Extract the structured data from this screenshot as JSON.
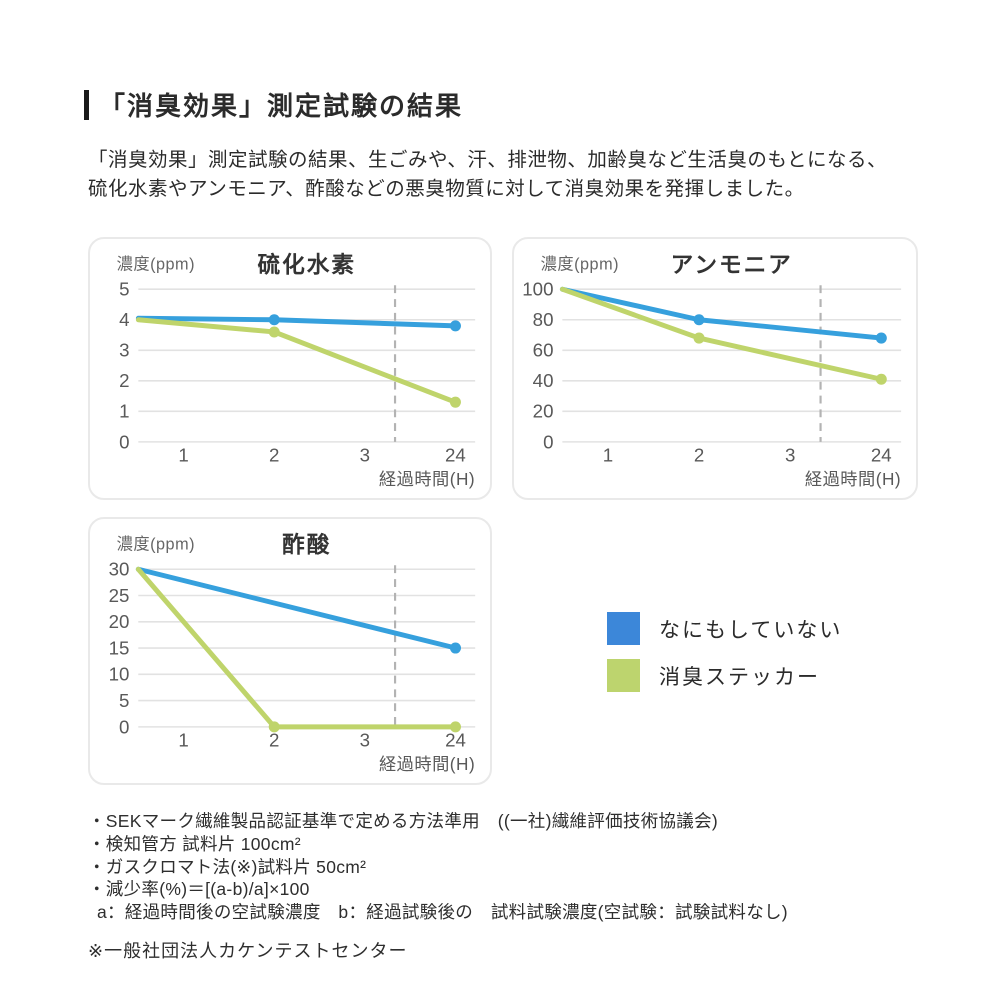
{
  "page": {
    "title": "「消臭効果」測定試験の結果",
    "description_lines": [
      "「消臭効果」測定試験の結果、生ごみや、汗、排泄物、加齢臭など生活臭のもとになる、",
      "硫化水素やアンモニア、酢酸などの悪臭物質に対して消臭効果を発揮しました。"
    ]
  },
  "colors": {
    "accent_bar": "#1a1a1a",
    "blue_line": "#36a0dd",
    "green_line": "#bfd46b",
    "grid": "#e2e2e2",
    "dashed_break": "#b3b3b3",
    "axis_text": "#595959",
    "chart_title_text": "#333333",
    "unit_label_text": "#666666"
  },
  "legend": {
    "items": [
      {
        "label": "なにもしていない",
        "color": "#3c87d9"
      },
      {
        "label": "消臭ステッカー",
        "color": "#bdd46e"
      }
    ]
  },
  "chart_data": [
    {
      "type": "line",
      "title": "硫化水素",
      "ylabel": "濃度(ppm)",
      "xlabel": "経過時間(H)",
      "x_ticks": [
        "1",
        "2",
        "3",
        "24"
      ],
      "y_ticks": [
        5,
        4,
        3,
        2,
        1,
        0
      ],
      "ylim": [
        0,
        5
      ],
      "grid": true,
      "axis_break_dashed_after": "3",
      "series": [
        {
          "name": "なにもしていない",
          "color": "#36a0dd",
          "points": [
            {
              "x": "start",
              "value": 4.05,
              "marker": false
            },
            {
              "x": "2",
              "value": 4.0,
              "marker": true
            },
            {
              "x": "24",
              "value": 3.8,
              "marker": true
            }
          ]
        },
        {
          "name": "消臭ステッカー",
          "color": "#bfd46b",
          "points": [
            {
              "x": "start",
              "value": 4.0,
              "marker": false
            },
            {
              "x": "2",
              "value": 3.6,
              "marker": true
            },
            {
              "x": "24",
              "value": 1.3,
              "marker": true
            }
          ]
        }
      ]
    },
    {
      "type": "line",
      "title": "アンモニア",
      "ylabel": "濃度(ppm)",
      "xlabel": "経過時間(H)",
      "x_ticks": [
        "1",
        "2",
        "3",
        "24"
      ],
      "y_ticks": [
        100,
        80,
        60,
        40,
        20,
        0
      ],
      "ylim": [
        0,
        100
      ],
      "grid": true,
      "axis_break_dashed_after": "3",
      "series": [
        {
          "name": "なにもしていない",
          "color": "#36a0dd",
          "points": [
            {
              "x": "start",
              "value": 100,
              "marker": false
            },
            {
              "x": "2",
              "value": 80,
              "marker": true
            },
            {
              "x": "24",
              "value": 68,
              "marker": true
            }
          ]
        },
        {
          "name": "消臭ステッカー",
          "color": "#bfd46b",
          "points": [
            {
              "x": "start",
              "value": 100,
              "marker": false
            },
            {
              "x": "2",
              "value": 68,
              "marker": true
            },
            {
              "x": "24",
              "value": 41,
              "marker": true
            }
          ]
        }
      ]
    },
    {
      "type": "line",
      "title": "酢酸",
      "ylabel": "濃度(ppm)",
      "xlabel": "経過時間(H)",
      "x_ticks": [
        "1",
        "2",
        "3",
        "24"
      ],
      "y_ticks": [
        30,
        25,
        20,
        15,
        10,
        5,
        0
      ],
      "ylim": [
        0,
        30
      ],
      "grid": true,
      "axis_break_dashed_after": "3",
      "series": [
        {
          "name": "なにもしていない",
          "color": "#36a0dd",
          "points": [
            {
              "x": "start",
              "value": 30,
              "marker": false
            },
            {
              "x": "24",
              "value": 15,
              "marker": true
            }
          ]
        },
        {
          "name": "消臭ステッカー",
          "color": "#bfd46b",
          "points": [
            {
              "x": "start",
              "value": 30,
              "marker": false
            },
            {
              "x": "2",
              "value": 0,
              "marker": true
            },
            {
              "x": "24",
              "value": 0,
              "marker": true
            }
          ]
        }
      ]
    }
  ],
  "footnotes": {
    "items": [
      "・SEKマーク繊維製品認証基準で定める方法準用　((一社)繊維評価技術協議会)",
      "・検知管方 試料片 100cm²",
      "・ガスクロマト法(※)試料片 50cm²",
      "・減少率(%)＝[(a-b)/a]×100",
      "a：経過時間後の空試験濃度　b：経過試験後の　試料試験濃度(空試験：試験試料なし)"
    ],
    "source_note": "※一般社団法人カケンテストセンター"
  }
}
